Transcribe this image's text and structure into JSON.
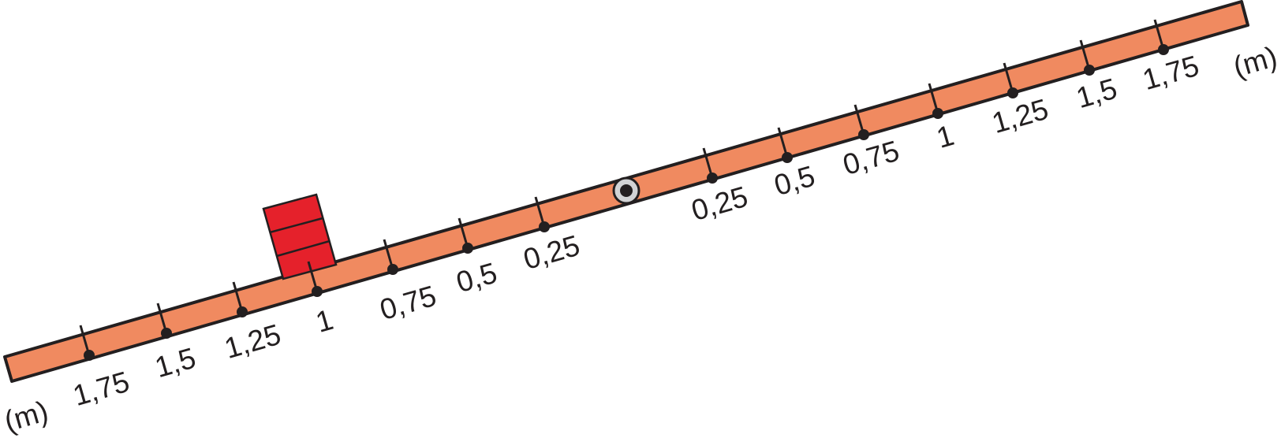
{
  "colors": {
    "beam_fill": "#f08a60",
    "outline": "#231f20",
    "block_fill": "#e5212b",
    "pivot_ring": "#d2d3d5"
  },
  "beam": {
    "left_unit": "(m)",
    "right_unit": "(m)",
    "left_marks": [
      "1,75",
      "1,5",
      "1,25",
      "1",
      "0,75",
      "0,5",
      "0,25"
    ],
    "right_marks": [
      "0,25",
      "0,5",
      "0,75",
      "1",
      "1,25",
      "1,5",
      "1,75"
    ]
  },
  "block": {
    "stacked_units": 3,
    "position_label": "1"
  },
  "pivot": {
    "icon": "pivot-icon"
  }
}
